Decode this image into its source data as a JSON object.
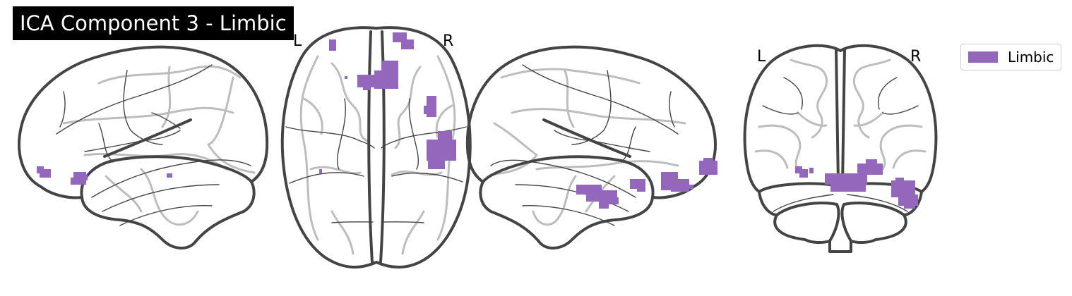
{
  "title": "ICA Component 3 - Limbic",
  "orientation": {
    "axial_left": "L",
    "axial_right": "R",
    "coronal_left": "L",
    "coronal_right": "R"
  },
  "legend": {
    "label": "Limbic",
    "color": "#9467bd"
  },
  "colors": {
    "outline": "#444444",
    "sulci": "#bdbdbd",
    "blob": "#9467bd"
  }
}
